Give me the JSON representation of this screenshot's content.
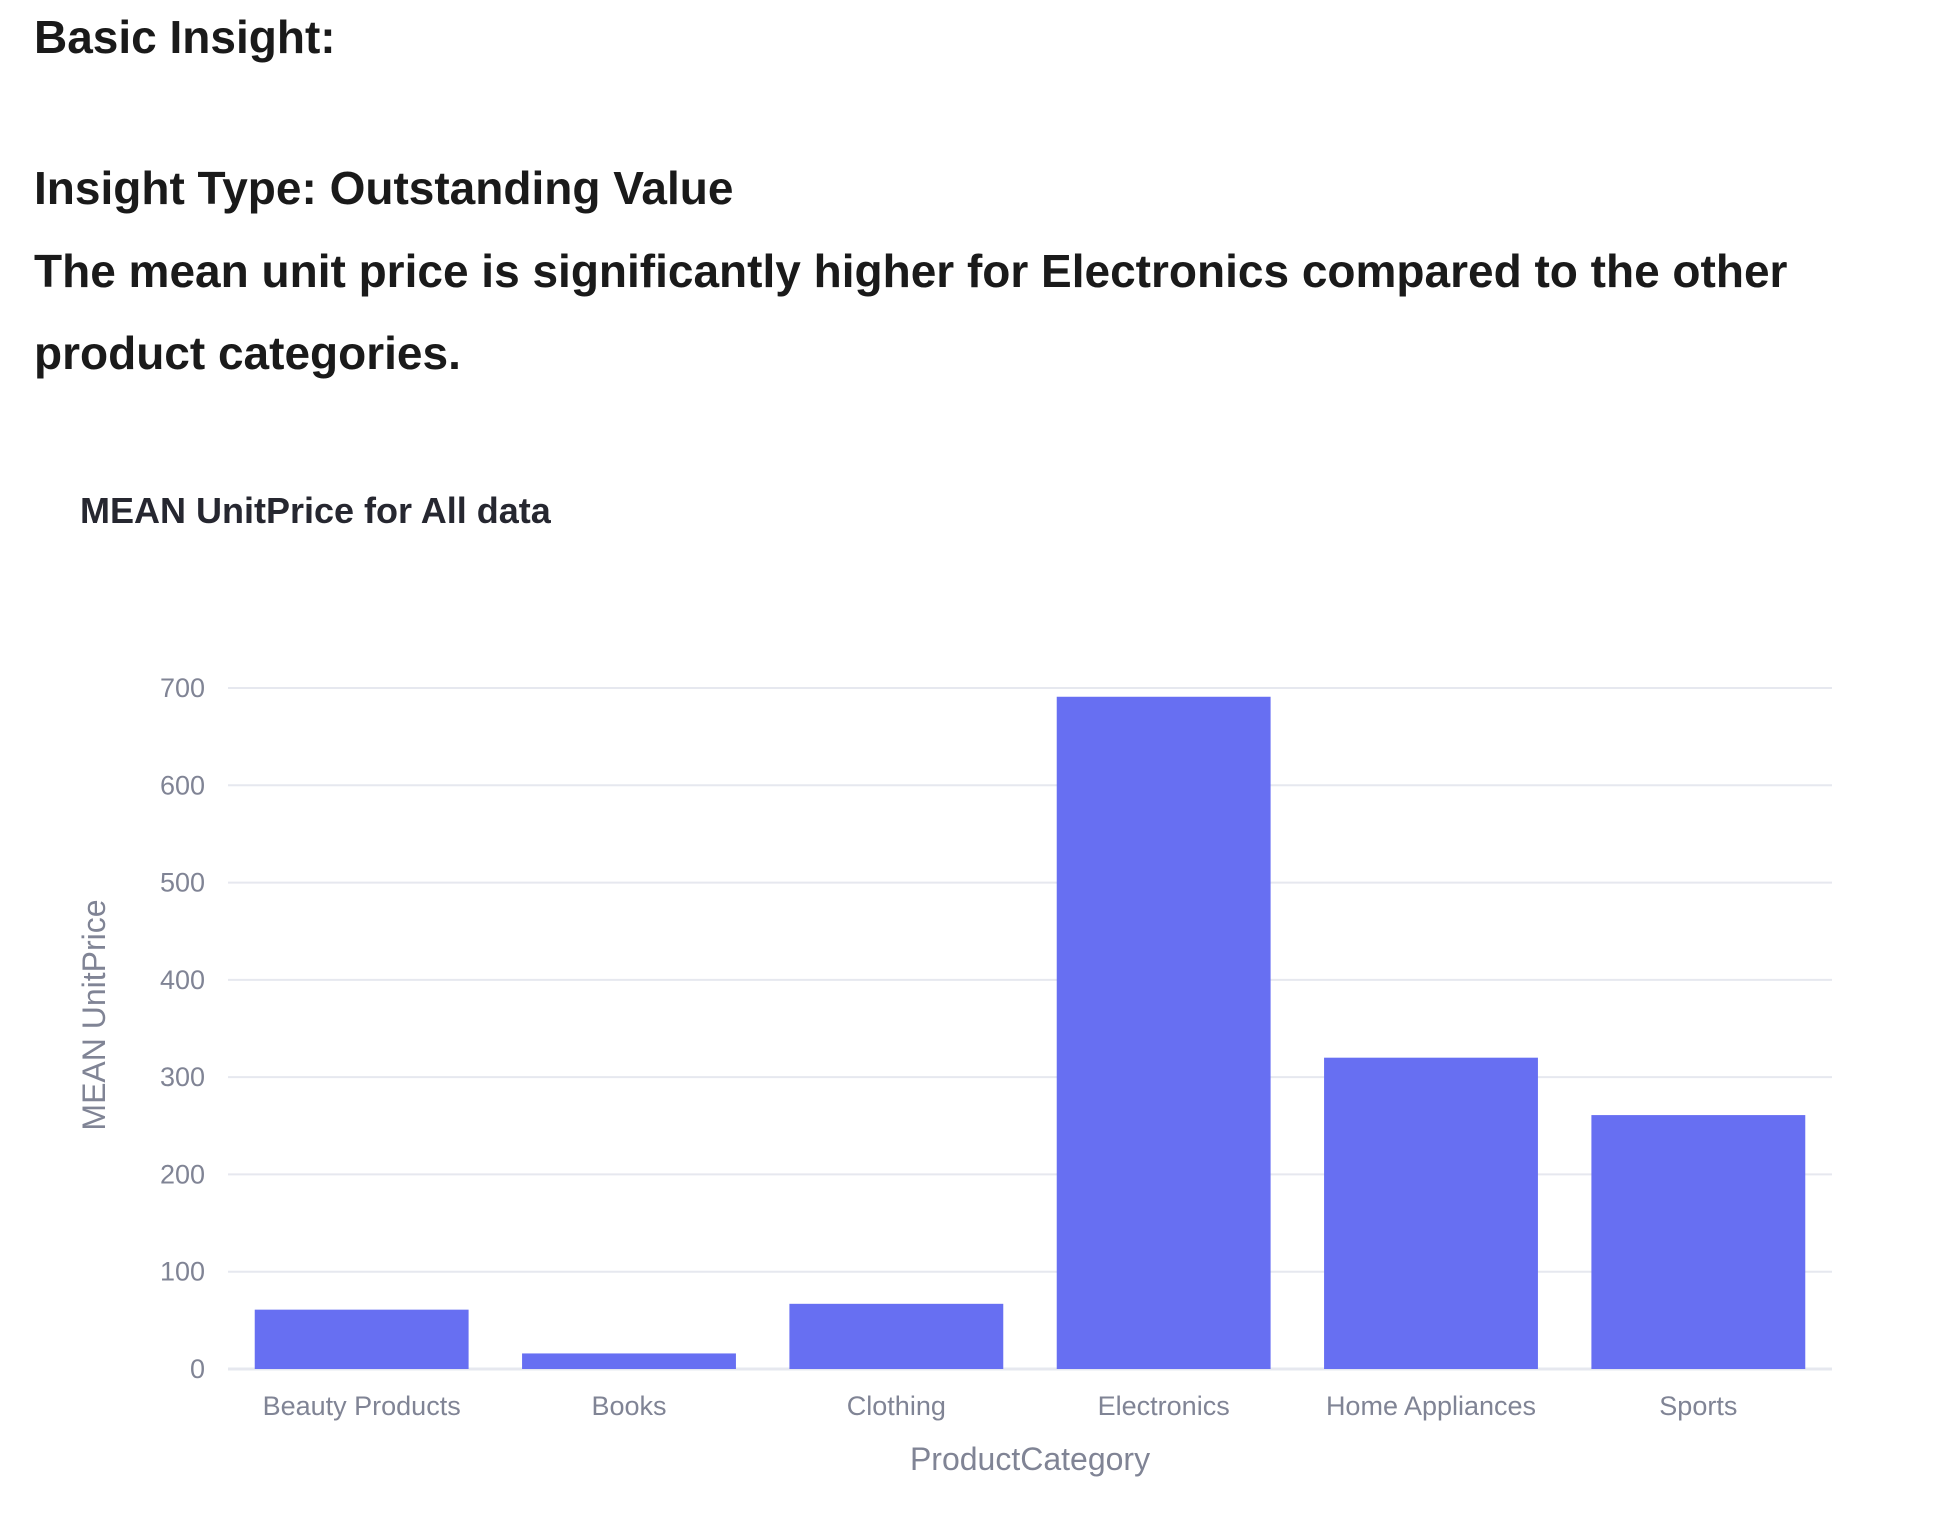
{
  "insight": {
    "heading": "Basic Insight:",
    "type_line": "Insight Type: Outstanding Value",
    "description": "The mean unit price is significantly higher for Electronics compared to the other product categories."
  },
  "chart_data": {
    "type": "bar",
    "title": "MEAN UnitPrice for All data",
    "xlabel": "ProductCategory",
    "ylabel": "MEAN UnitPrice",
    "categories": [
      "Beauty Products",
      "Books",
      "Clothing",
      "Electronics",
      "Home Appliances",
      "Sports"
    ],
    "values": [
      61,
      16,
      67,
      691,
      320,
      261
    ],
    "ylim": [
      0,
      700
    ],
    "yticks": [
      0,
      100,
      200,
      300,
      400,
      500,
      600,
      700
    ],
    "grid": true,
    "bar_color": "#676FF2",
    "grid_color": "#E6E8EF"
  }
}
